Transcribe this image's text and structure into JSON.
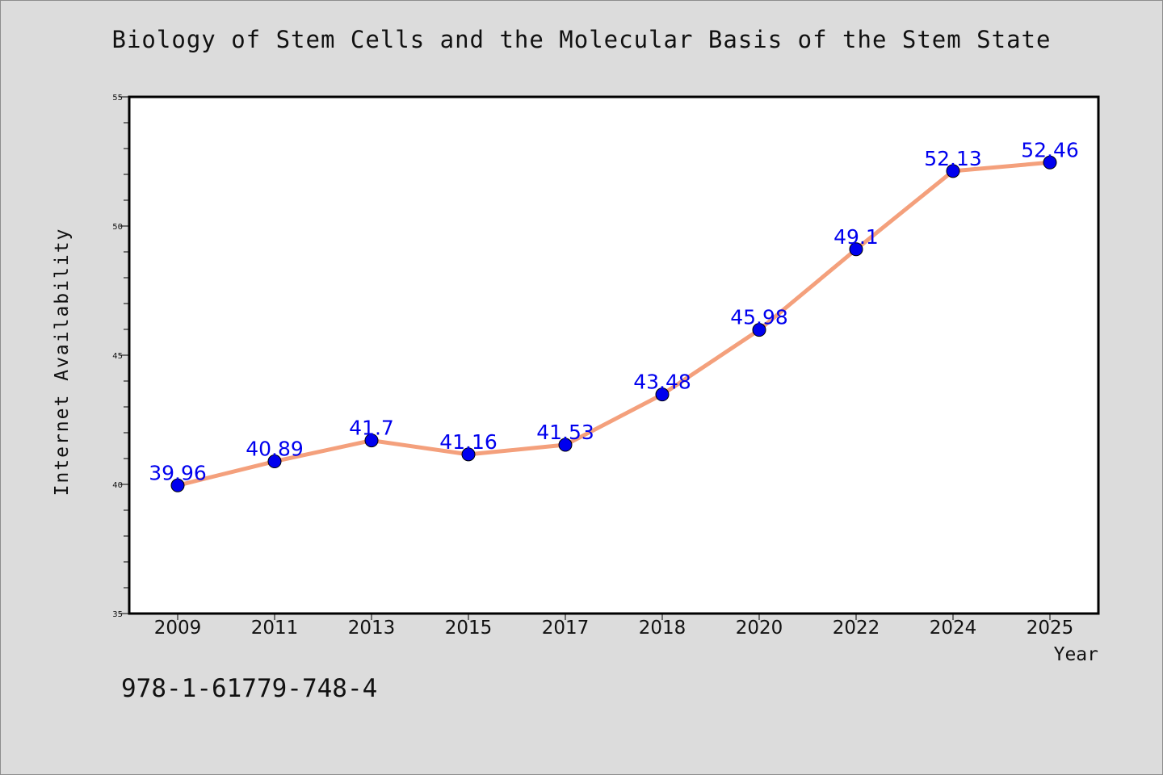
{
  "chart_data": {
    "type": "line",
    "title": "Biology of Stem Cells and the Molecular Basis of the Stem State",
    "xlabel": "Year",
    "ylabel": "Internet Availability",
    "categories": [
      "2009",
      "2011",
      "2013",
      "2015",
      "2017",
      "2018",
      "2020",
      "2022",
      "2024",
      "2025"
    ],
    "series": [
      {
        "values": [
          39.96,
          40.89,
          41.7,
          41.16,
          41.53,
          43.48,
          45.98,
          49.1,
          52.13,
          52.46
        ],
        "data_labels": [
          "39.96",
          "40.89",
          "41.7",
          "41.16",
          "41.53",
          "43.48",
          "45.98",
          "49.1",
          "52.13",
          "52.46"
        ],
        "line_color": "#f4a07c",
        "marker_color": "#0000ee",
        "label_color": "#0000ee"
      }
    ],
    "ylim": [
      35,
      55
    ],
    "yticks": [
      35,
      40,
      45,
      50,
      55
    ],
    "grid": false,
    "legend": "none"
  },
  "footnote": "978-1-61779-748-4",
  "colors": {
    "background": "#dcdcdc",
    "plot_background": "#ffffff"
  }
}
